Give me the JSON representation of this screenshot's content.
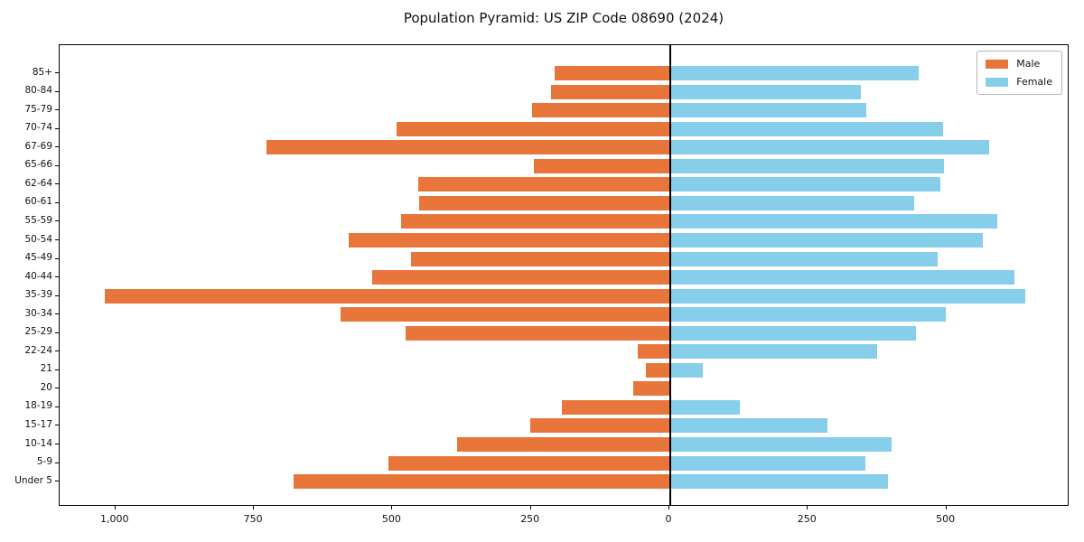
{
  "chart_data": {
    "type": "bar",
    "subtype": "population-pyramid-horizontal",
    "title": "Population Pyramid: US ZIP Code 08690 (2024)",
    "categories": [
      "85+",
      "80-84",
      "75-79",
      "70-74",
      "67-69",
      "65-66",
      "62-64",
      "60-61",
      "55-59",
      "50-54",
      "45-49",
      "40-44",
      "35-39",
      "30-34",
      "25-29",
      "22-24",
      "21",
      "20",
      "18-19",
      "15-17",
      "10-14",
      "5-9",
      "Under 5"
    ],
    "series": [
      {
        "name": "Male",
        "side": "left",
        "color": "#e8763a",
        "values": [
          207,
          213,
          248,
          492,
          728,
          244,
          453,
          451,
          484,
          579,
          466,
          537,
          1020,
          594,
          477,
          57,
          42,
          66,
          194,
          251,
          383,
          507,
          679
        ]
      },
      {
        "name": "Female",
        "side": "right",
        "color": "#87ceeb",
        "values": [
          450,
          345,
          356,
          494,
          578,
          496,
          489,
          442,
          592,
          566,
          485,
          623,
          643,
          499,
          445,
          375,
          61,
          0,
          127,
          285,
          401,
          354,
          394
        ]
      }
    ],
    "xlabel": "",
    "ylabel": "",
    "xlim": [
      -1100,
      722
    ],
    "x_ticks": [
      {
        "value": -1000,
        "label": "1,000"
      },
      {
        "value": -750,
        "label": "750"
      },
      {
        "value": -500,
        "label": "500"
      },
      {
        "value": -250,
        "label": "250"
      },
      {
        "value": 0,
        "label": "0"
      },
      {
        "value": 250,
        "label": "250"
      },
      {
        "value": 500,
        "label": "500"
      }
    ],
    "grid": false,
    "legend": {
      "position": "top-right",
      "entries": [
        "Male",
        "Female"
      ]
    },
    "axis_color": "#000000",
    "background_color": "#ffffff"
  }
}
